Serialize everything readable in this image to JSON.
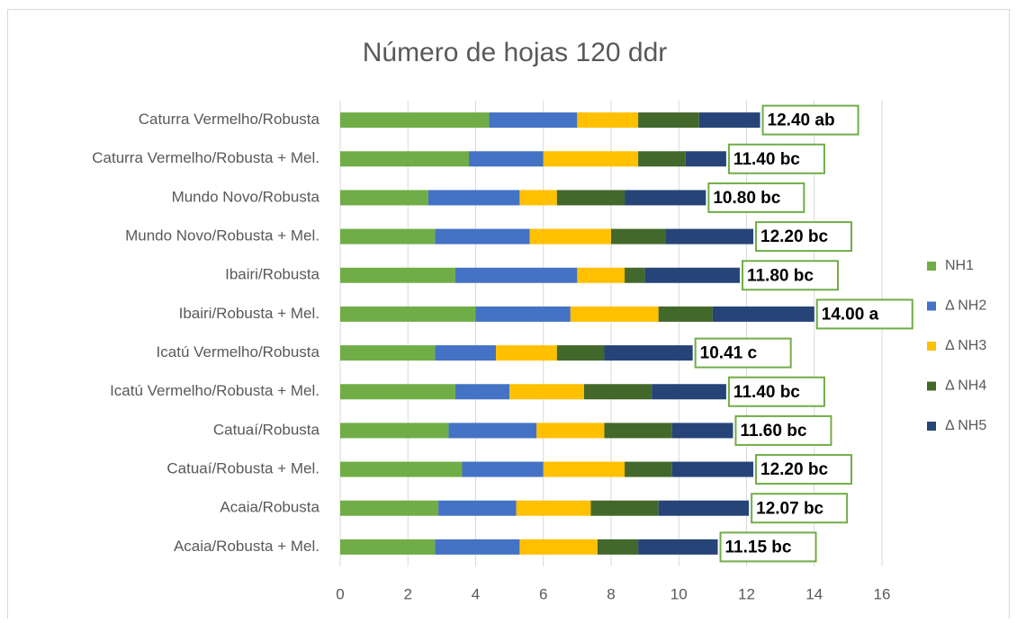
{
  "chart_data": {
    "type": "stacked_barh",
    "title": "Número de hojas 120 ddr",
    "categories": [
      "Caturra Vermelho/Robusta",
      "Caturra Vermelho/Robusta + Mel.",
      "Mundo Novo/Robusta",
      "Mundo Novo/Robusta + Mel.",
      "Ibairi/Robusta",
      "Ibairi/Robusta + Mel.",
      "Icatú Vermelho/Robusta",
      "Icatú Vermelho/Robusta + Mel.",
      "Catuaí/Robusta",
      "Catuaí/Robusta + Mel.",
      "Acaia/Robusta",
      "Acaia/Robusta + Mel."
    ],
    "series": [
      {
        "name": "NH1",
        "color": "#70ad47",
        "values": [
          4.4,
          3.8,
          2.6,
          2.8,
          3.4,
          4.0,
          2.8,
          3.4,
          3.2,
          3.6,
          2.9,
          2.8
        ]
      },
      {
        "name": "Δ NH2",
        "color": "#4472c4",
        "values": [
          2.6,
          2.2,
          2.7,
          2.8,
          3.6,
          2.8,
          1.8,
          1.6,
          2.6,
          2.4,
          2.3,
          2.5
        ]
      },
      {
        "name": "Δ NH3",
        "color": "#ffc000",
        "values": [
          1.8,
          2.8,
          1.1,
          2.4,
          1.4,
          2.6,
          1.8,
          2.2,
          2.0,
          2.4,
          2.2,
          2.3
        ]
      },
      {
        "name": "Δ NH4",
        "color": "#43682b",
        "values": [
          1.8,
          1.4,
          2.0,
          1.6,
          0.6,
          1.6,
          1.4,
          2.0,
          2.0,
          1.4,
          2.0,
          1.2
        ]
      },
      {
        "name": "Δ NH5",
        "color": "#264478",
        "values": [
          1.8,
          1.2,
          2.4,
          2.6,
          2.8,
          3.0,
          2.61,
          2.2,
          1.8,
          2.4,
          2.67,
          2.35
        ]
      }
    ],
    "annotations": [
      "12.40 ab",
      "11.40 bc",
      "10.80 bc",
      "12.20 bc",
      "11.80 bc",
      "14.00 a",
      "10.41 c",
      "11.40 bc",
      "11.60 bc",
      "12.20 bc",
      "12.07 bc",
      "11.15 bc"
    ],
    "xlim": [
      0,
      16
    ],
    "xticks": [
      0,
      2,
      4,
      6,
      8,
      10,
      12,
      14,
      16
    ],
    "grid": true,
    "legend": "right",
    "annotation_color": "#70ad47"
  }
}
